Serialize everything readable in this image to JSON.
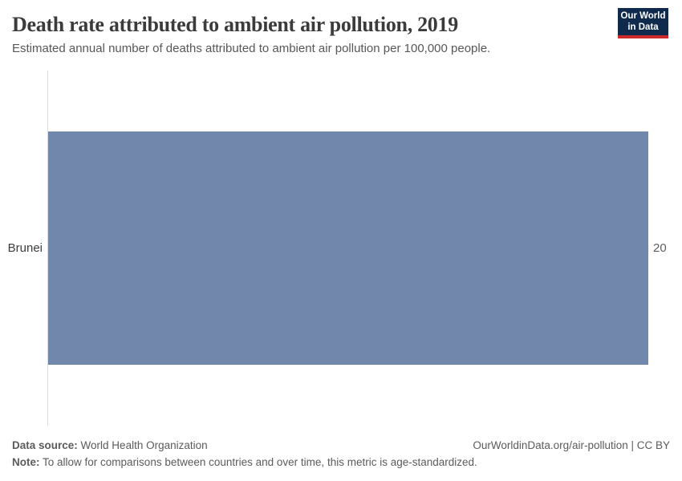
{
  "header": {
    "title": "Death rate attributed to ambient air pollution, 2019",
    "subtitle": "Estimated annual number of deaths attributed to ambient air pollution per 100,000 people.",
    "logo": {
      "line1": "Our World",
      "line2": "in Data"
    }
  },
  "chart": {
    "entity_label": "Brunei",
    "value_label": "20"
  },
  "chart_data": {
    "type": "bar",
    "orientation": "horizontal",
    "title": "Death rate attributed to ambient air pollution, 2019",
    "subtitle": "Estimated annual number of deaths attributed to ambient air pollution per 100,000 people.",
    "categories": [
      "Brunei"
    ],
    "values": [
      20
    ],
    "xlim": [
      0,
      20
    ],
    "grid": false,
    "legend": false,
    "bar_color": "#7187ab"
  },
  "footer": {
    "data_source_label": "Data source:",
    "data_source_value": "World Health Organization",
    "origin_link": "OurWorldinData.org/air-pollution | CC BY",
    "note_label": "Note:",
    "note_value": "To allow for comparisons between countries and over time, this metric is age-standardized."
  },
  "colors": {
    "bar": "#7187ab",
    "axis_line": "#dcdcdc",
    "logo_bg": "#102a4e",
    "logo_stripe": "#cc2a28",
    "title_text": "#3b3b3b",
    "body_text": "#5b5b5b"
  }
}
